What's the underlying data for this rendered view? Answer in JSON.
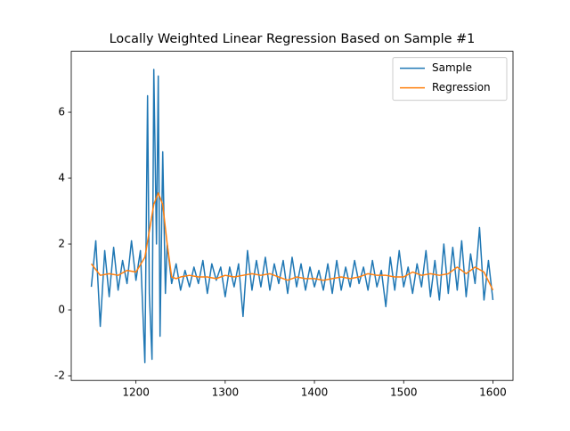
{
  "chart_data": {
    "type": "line",
    "title": "Locally Weighted Linear Regression Based on Sample #1",
    "xlim": [
      1127.5,
      1622.5
    ],
    "xticks": [
      1200,
      1300,
      1400,
      1500,
      1600
    ],
    "ylim": [
      -2.14,
      7.85
    ],
    "yticks": [
      -2,
      0,
      2,
      4,
      6
    ],
    "grid": false,
    "legend": "upper right",
    "series": [
      {
        "name": "Sample",
        "color": "#1f77b4",
        "x": [
          1150,
          1155,
          1160,
          1165,
          1170,
          1175,
          1180,
          1185,
          1190,
          1195,
          1200,
          1205,
          1210,
          1213,
          1215,
          1218,
          1220,
          1223,
          1225,
          1227,
          1230,
          1233,
          1235,
          1240,
          1245,
          1250,
          1255,
          1260,
          1265,
          1270,
          1275,
          1280,
          1285,
          1290,
          1295,
          1300,
          1305,
          1310,
          1315,
          1320,
          1325,
          1330,
          1335,
          1340,
          1345,
          1350,
          1355,
          1360,
          1365,
          1370,
          1375,
          1380,
          1385,
          1390,
          1395,
          1400,
          1405,
          1410,
          1415,
          1420,
          1425,
          1430,
          1435,
          1440,
          1445,
          1450,
          1455,
          1460,
          1465,
          1470,
          1475,
          1480,
          1485,
          1490,
          1495,
          1500,
          1505,
          1510,
          1515,
          1520,
          1525,
          1530,
          1535,
          1540,
          1545,
          1550,
          1555,
          1560,
          1565,
          1570,
          1575,
          1580,
          1585,
          1590,
          1595,
          1600
        ],
        "values": [
          0.7,
          2.1,
          -0.5,
          1.8,
          0.4,
          1.9,
          0.6,
          1.5,
          0.8,
          2.1,
          0.9,
          1.8,
          -1.6,
          6.5,
          0.5,
          -1.5,
          7.3,
          2.0,
          7.1,
          -0.8,
          4.8,
          0.5,
          2.0,
          0.8,
          1.4,
          0.6,
          1.2,
          0.7,
          1.3,
          0.8,
          1.5,
          0.5,
          1.4,
          0.9,
          1.3,
          0.4,
          1.3,
          0.7,
          1.4,
          -0.2,
          1.8,
          0.6,
          1.5,
          0.7,
          1.6,
          0.6,
          1.4,
          0.8,
          1.5,
          0.5,
          1.6,
          0.7,
          1.4,
          0.6,
          1.3,
          0.7,
          1.2,
          0.6,
          1.4,
          0.5,
          1.5,
          0.6,
          1.3,
          0.7,
          1.5,
          0.8,
          1.3,
          0.6,
          1.5,
          0.7,
          1.2,
          0.1,
          1.6,
          0.6,
          1.8,
          0.7,
          1.3,
          0.5,
          1.4,
          0.7,
          1.8,
          0.4,
          1.5,
          0.3,
          2.0,
          0.5,
          1.9,
          0.6,
          2.1,
          0.4,
          1.7,
          0.8,
          2.5,
          0.3,
          1.5,
          0.3
        ]
      },
      {
        "name": "Regression",
        "color": "#ff7f0e",
        "x": [
          1150,
          1160,
          1170,
          1180,
          1190,
          1200,
          1210,
          1220,
          1225,
          1230,
          1235,
          1240,
          1245,
          1250,
          1260,
          1270,
          1280,
          1290,
          1300,
          1310,
          1320,
          1330,
          1340,
          1350,
          1360,
          1370,
          1380,
          1390,
          1400,
          1410,
          1420,
          1430,
          1440,
          1450,
          1460,
          1470,
          1480,
          1490,
          1500,
          1510,
          1520,
          1530,
          1540,
          1550,
          1560,
          1570,
          1580,
          1590,
          1600
        ],
        "values": [
          1.4,
          1.05,
          1.1,
          1.05,
          1.2,
          1.15,
          1.6,
          3.2,
          3.55,
          3.2,
          2.0,
          1.0,
          0.95,
          1.0,
          1.05,
          1.0,
          1.0,
          0.95,
          1.05,
          1.0,
          1.05,
          1.1,
          1.05,
          1.1,
          1.0,
          0.9,
          1.0,
          0.95,
          0.95,
          0.9,
          0.95,
          1.0,
          0.95,
          1.0,
          1.1,
          1.05,
          1.05,
          1.0,
          1.0,
          1.15,
          1.05,
          1.1,
          1.05,
          1.1,
          1.3,
          1.1,
          1.3,
          1.15,
          0.6
        ]
      }
    ]
  }
}
